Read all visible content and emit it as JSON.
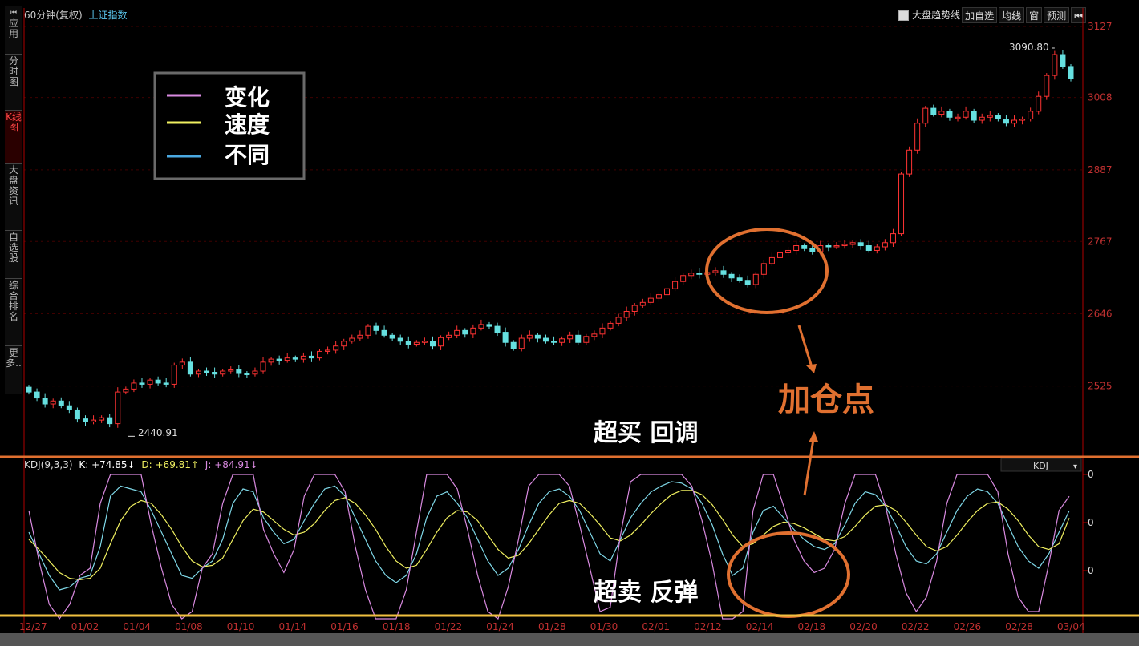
{
  "sidebar": {
    "items": [
      {
        "label": "应用"
      },
      {
        "label": "分时图"
      },
      {
        "label": "K线图"
      },
      {
        "label": "大盘资讯"
      },
      {
        "label": "自选股"
      },
      {
        "label": "综合排名"
      },
      {
        "label": "更多.."
      }
    ],
    "active_index": 2
  },
  "header": {
    "period": "60分钟(复权)",
    "index_name": "上证指数"
  },
  "toolbar": {
    "checkbox_label": "大盘趋势线",
    "add_watch": "加自选",
    "ma": "均线",
    "window": "窗",
    "forecast": "预测"
  },
  "legend_box": {
    "items": [
      {
        "label": "变化",
        "color": "#d98ae0"
      },
      {
        "label": "速度",
        "color": "#f0f060"
      },
      {
        "label": "不同",
        "color": "#4aa8e0"
      }
    ]
  },
  "annotations": {
    "add_point": "加仓点",
    "overbought": "超买  回调",
    "oversold": "超卖  反弹",
    "high_label": "3090.80",
    "low_label": "2440.91"
  },
  "kdj_header": {
    "name": "KDJ(9,3,3)",
    "k": "K: +74.85↓",
    "d": "D: +69.81↑",
    "j": "J: +84.91↓",
    "selector": "KDJ"
  },
  "colors": {
    "up": "#ff3333",
    "down": "#66e0e0",
    "axis": "#b00000",
    "accent": "#e07030",
    "yellow_line": "#f0c040"
  },
  "chart_data": [
    {
      "type": "candlestick",
      "title": "上证指数",
      "x_ticks": [
        "12/27",
        "01/02",
        "01/04",
        "01/08",
        "01/10",
        "01/14",
        "01/16",
        "01/18",
        "01/22",
        "01/24",
        "01/28",
        "01/30",
        "02/01",
        "02/12",
        "02/14",
        "02/18",
        "02/20",
        "02/22",
        "02/26",
        "02/28",
        "03/04"
      ],
      "y_ticks": [
        2525,
        2646,
        2767,
        2887,
        3008,
        3127
      ],
      "ylim": [
        2440,
        3127
      ],
      "close": [
        2515,
        2505,
        2495,
        2500,
        2492,
        2485,
        2470,
        2465,
        2468,
        2472,
        2462,
        2515,
        2520,
        2530,
        2528,
        2535,
        2530,
        2528,
        2560,
        2565,
        2545,
        2550,
        2548,
        2545,
        2550,
        2552,
        2546,
        2545,
        2550,
        2565,
        2570,
        2568,
        2572,
        2570,
        2575,
        2572,
        2583,
        2585,
        2592,
        2600,
        2605,
        2610,
        2625,
        2618,
        2610,
        2605,
        2600,
        2595,
        2598,
        2600,
        2592,
        2606,
        2610,
        2618,
        2612,
        2622,
        2628,
        2625,
        2615,
        2598,
        2588,
        2605,
        2610,
        2605,
        2600,
        2598,
        2604,
        2610,
        2598,
        2608,
        2612,
        2622,
        2630,
        2640,
        2650,
        2660,
        2665,
        2672,
        2678,
        2688,
        2700,
        2710,
        2714,
        2712,
        2715,
        2718,
        2712,
        2706,
        2702,
        2695,
        2712,
        2730,
        2740,
        2748,
        2752,
        2760,
        2755,
        2750,
        2760,
        2758,
        2760,
        2762,
        2765,
        2760,
        2752,
        2758,
        2765,
        2780,
        2880,
        2920,
        2965,
        2990,
        2980,
        2985,
        2975,
        2975,
        2985,
        2970,
        2975,
        2978,
        2972,
        2965,
        2970,
        2972,
        2985,
        3010,
        3045,
        3080,
        3060,
        3040
      ],
      "low": 2440.91,
      "high": 3090.8
    },
    {
      "type": "line",
      "title": "KDJ(9,3,3)",
      "values_last": {
        "K": 74.85,
        "D": 69.81,
        "J": 84.91
      },
      "series": [
        {
          "name": "K",
          "values": [
            60,
            45,
            30,
            20,
            22,
            28,
            30,
            50,
            85,
            92,
            90,
            88,
            75,
            60,
            45,
            30,
            28,
            35,
            40,
            55,
            80,
            90,
            88,
            70,
            60,
            52,
            55,
            68,
            80,
            90,
            92,
            85,
            70,
            55,
            40,
            30,
            25,
            30,
            45,
            70,
            85,
            88,
            80,
            70,
            55,
            40,
            30,
            35,
            48,
            65,
            80,
            88,
            90,
            85,
            75,
            60,
            45,
            40,
            55,
            70,
            80,
            88,
            92,
            95,
            94,
            90,
            80,
            65,
            45,
            30,
            35,
            60,
            75,
            78,
            70,
            62,
            55,
            50,
            48,
            52,
            65,
            80,
            88,
            86,
            78,
            65,
            50,
            40,
            38,
            45,
            60,
            75,
            85,
            90,
            88,
            80,
            65,
            50,
            40,
            35,
            45,
            60,
            74.85
          ]
        },
        {
          "name": "D",
          "values": [
            55,
            48,
            40,
            32,
            28,
            27,
            28,
            35,
            52,
            68,
            78,
            82,
            80,
            72,
            62,
            50,
            40,
            36,
            37,
            42,
            55,
            68,
            76,
            74,
            68,
            62,
            58,
            60,
            66,
            75,
            82,
            84,
            80,
            72,
            62,
            50,
            40,
            35,
            37,
            48,
            60,
            70,
            75,
            74,
            68,
            58,
            48,
            42,
            44,
            52,
            62,
            72,
            80,
            82,
            80,
            73,
            65,
            56,
            54,
            58,
            65,
            73,
            80,
            86,
            89,
            89,
            86,
            79,
            69,
            58,
            50,
            52,
            58,
            64,
            67,
            66,
            63,
            59,
            55,
            54,
            57,
            64,
            72,
            78,
            79,
            75,
            67,
            58,
            50,
            47,
            50,
            58,
            67,
            75,
            80,
            81,
            76,
            68,
            58,
            50,
            48,
            52,
            69.81
          ]
        },
        {
          "name": "J",
          "values": [
            75,
            40,
            10,
            0,
            10,
            30,
            35,
            80,
            100,
            100,
            100,
            100,
            65,
            35,
            10,
            0,
            5,
            35,
            45,
            80,
            100,
            100,
            100,
            62,
            45,
            32,
            48,
            85,
            100,
            100,
            100,
            88,
            50,
            20,
            0,
            0,
            0,
            20,
            60,
            100,
            100,
            100,
            90,
            62,
            30,
            5,
            0,
            22,
            55,
            92,
            100,
            100,
            100,
            92,
            65,
            35,
            5,
            8,
            58,
            95,
            100,
            100,
            100,
            100,
            100,
            92,
            68,
            38,
            0,
            0,
            5,
            75,
            100,
            100,
            78,
            55,
            40,
            32,
            35,
            48,
            80,
            100,
            100,
            100,
            78,
            45,
            18,
            5,
            15,
            40,
            80,
            100,
            100,
            100,
            100,
            88,
            45,
            15,
            5,
            5,
            38,
            75,
            84.91
          ]
        }
      ],
      "ylim": [
        0,
        100
      ]
    }
  ]
}
